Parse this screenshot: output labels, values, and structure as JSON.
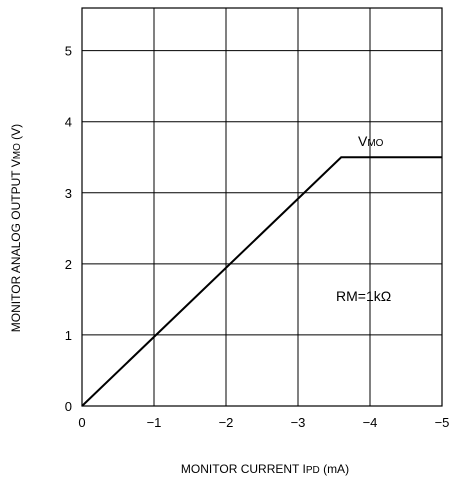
{
  "chart_data": {
    "type": "line",
    "xlabel": {
      "main": "MONITOR CURRENT I",
      "sub": "PD",
      "unit": " (mA)"
    },
    "ylabel": {
      "main": "MONITOR ANALOG OUTPUT  V",
      "sub": "MO",
      "unit": " (V)"
    },
    "xlim": [
      0,
      -5
    ],
    "ylim": [
      0,
      5.6
    ],
    "x_ticks": [
      {
        "value": 0,
        "label": "0"
      },
      {
        "value": -1,
        "label": "−1"
      },
      {
        "value": -2,
        "label": "−2"
      },
      {
        "value": -3,
        "label": "−3"
      },
      {
        "value": -4,
        "label": "−4"
      },
      {
        "value": -5,
        "label": "−5"
      }
    ],
    "y_ticks": [
      {
        "value": 0,
        "label": "0"
      },
      {
        "value": 1,
        "label": "1"
      },
      {
        "value": 2,
        "label": "2"
      },
      {
        "value": 3,
        "label": "3"
      },
      {
        "value": 4,
        "label": "4"
      },
      {
        "value": 5,
        "label": "5"
      }
    ],
    "grid": true,
    "series": [
      {
        "name": "VMO",
        "x": [
          0,
          -3.6,
          -5
        ],
        "y": [
          0,
          3.5,
          3.5
        ]
      }
    ],
    "annotations": {
      "series_label": {
        "main": "V",
        "sub": "MO"
      },
      "condition": "RM=1kΩ"
    }
  }
}
